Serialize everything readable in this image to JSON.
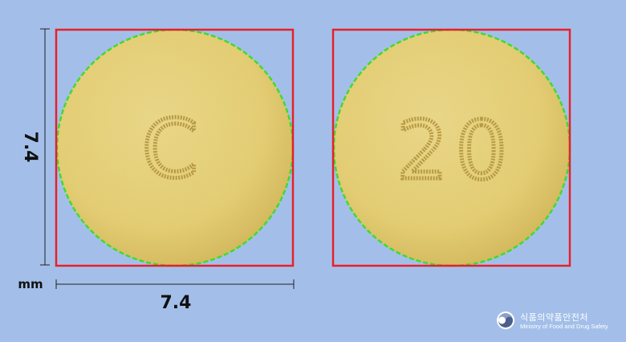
{
  "dimensions": {
    "width_label": "7.4",
    "height_label": "7.4",
    "unit": "mm"
  },
  "tablets": [
    {
      "side": "front",
      "imprint": "C"
    },
    {
      "side": "back",
      "imprint": "20"
    }
  ],
  "colors": {
    "background": "#a3bfe9",
    "tablet": "#e8d47c",
    "tablet_shadow": "#cdb458",
    "outline": "#3fdc2a",
    "bounding_box": "#e8202a",
    "dimension_line": "#222222"
  },
  "logo": {
    "korean": "식품의약품안전처",
    "english": "Ministry of Food and Drug Safety",
    "icon": "mfds-emblem-icon"
  }
}
